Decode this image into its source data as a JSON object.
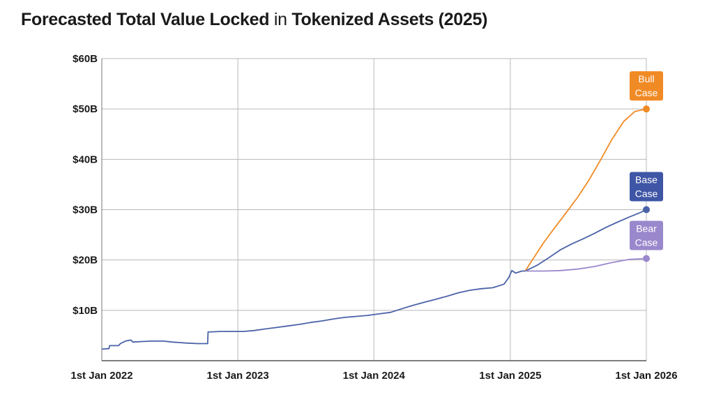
{
  "title": {
    "part1": "Forecasted Total Value Locked",
    "part2": "in",
    "part3": "Tokenized Assets (2025)"
  },
  "chart_data": {
    "type": "line",
    "title": "Forecasted Total Value Locked in Tokenized Assets (2025)",
    "xlabel": "",
    "ylabel": "",
    "x_range": [
      "2022-01-01",
      "2026-01-01"
    ],
    "ylim": [
      0,
      60
    ],
    "grid": true,
    "x_ticks": [
      {
        "date": "2022-01-01",
        "label": "1st Jan 2022"
      },
      {
        "date": "2023-01-01",
        "label": "1st Jan 2023"
      },
      {
        "date": "2024-01-01",
        "label": "1st Jan 2024"
      },
      {
        "date": "2025-01-01",
        "label": "1st Jan 2025"
      },
      {
        "date": "2026-01-01",
        "label": "1st Jan 2026"
      }
    ],
    "y_ticks": [
      {
        "value": 10,
        "label": "$10B"
      },
      {
        "value": 20,
        "label": "$20B"
      },
      {
        "value": 30,
        "label": "$30B"
      },
      {
        "value": 40,
        "label": "$40B"
      },
      {
        "value": 50,
        "label": "$50B"
      },
      {
        "value": 60,
        "label": "$60B"
      }
    ],
    "series": [
      {
        "color": "#4a62a8",
        "points": [
          [
            "2022-01-01",
            2.3
          ],
          [
            "2022-01-20",
            2.4
          ],
          [
            "2022-01-22",
            3.0
          ],
          [
            "2022-02-15",
            3.0
          ],
          [
            "2022-02-20",
            3.4
          ],
          [
            "2022-03-05",
            3.9
          ],
          [
            "2022-03-20",
            4.1
          ],
          [
            "2022-03-25",
            3.7
          ],
          [
            "2022-04-15",
            3.8
          ],
          [
            "2022-05-15",
            3.9
          ],
          [
            "2022-06-15",
            3.9
          ],
          [
            "2022-07-10",
            3.7
          ],
          [
            "2022-08-15",
            3.5
          ],
          [
            "2022-09-15",
            3.4
          ],
          [
            "2022-10-12",
            3.4
          ],
          [
            "2022-10-13",
            5.7
          ],
          [
            "2022-11-15",
            5.8
          ],
          [
            "2022-12-15",
            5.8
          ],
          [
            "2023-01-15",
            5.8
          ],
          [
            "2023-02-15",
            6.0
          ],
          [
            "2023-03-15",
            6.3
          ],
          [
            "2023-04-15",
            6.6
          ],
          [
            "2023-05-15",
            6.9
          ],
          [
            "2023-06-15",
            7.2
          ],
          [
            "2023-07-15",
            7.6
          ],
          [
            "2023-08-15",
            7.9
          ],
          [
            "2023-09-15",
            8.3
          ],
          [
            "2023-10-15",
            8.6
          ],
          [
            "2023-11-15",
            8.8
          ],
          [
            "2023-12-15",
            9.0
          ],
          [
            "2024-01-15",
            9.3
          ],
          [
            "2024-02-15",
            9.6
          ],
          [
            "2024-03-15",
            10.3
          ],
          [
            "2024-04-15",
            11.0
          ],
          [
            "2024-05-15",
            11.6
          ],
          [
            "2024-06-15",
            12.2
          ],
          [
            "2024-07-15",
            12.8
          ],
          [
            "2024-08-15",
            13.5
          ],
          [
            "2024-09-15",
            14.0
          ],
          [
            "2024-10-15",
            14.3
          ],
          [
            "2024-11-15",
            14.5
          ],
          [
            "2024-12-15",
            15.2
          ],
          [
            "2024-12-28",
            16.5
          ],
          [
            "2025-01-05",
            17.9
          ],
          [
            "2025-01-15",
            17.4
          ],
          [
            "2025-02-01",
            17.8
          ],
          [
            "2025-02-10",
            17.8
          ]
        ]
      },
      {
        "name": "Bull Case",
        "color": "#f08a24",
        "points": [
          [
            "2025-02-10",
            17.8
          ],
          [
            "2025-03-01",
            20.0
          ],
          [
            "2025-04-01",
            23.5
          ],
          [
            "2025-05-01",
            26.5
          ],
          [
            "2025-06-01",
            29.5
          ],
          [
            "2025-07-01",
            32.5
          ],
          [
            "2025-08-01",
            36.0
          ],
          [
            "2025-09-01",
            40.0
          ],
          [
            "2025-10-01",
            44.0
          ],
          [
            "2025-11-01",
            47.5
          ],
          [
            "2025-12-01",
            49.5
          ],
          [
            "2026-01-01",
            50.0
          ]
        ]
      },
      {
        "name": "Base Case",
        "color": "#4a62a8",
        "points": [
          [
            "2025-02-10",
            17.8
          ],
          [
            "2025-03-15",
            19.0
          ],
          [
            "2025-04-15",
            20.5
          ],
          [
            "2025-05-15",
            22.0
          ],
          [
            "2025-06-15",
            23.2
          ],
          [
            "2025-07-15",
            24.2
          ],
          [
            "2025-08-15",
            25.3
          ],
          [
            "2025-09-15",
            26.5
          ],
          [
            "2025-10-15",
            27.5
          ],
          [
            "2025-11-15",
            28.5
          ],
          [
            "2025-12-15",
            29.4
          ],
          [
            "2026-01-01",
            30.0
          ]
        ]
      },
      {
        "name": "Bear Case",
        "color": "#9a88cc",
        "points": [
          [
            "2025-02-10",
            17.8
          ],
          [
            "2025-04-01",
            17.8
          ],
          [
            "2025-05-15",
            17.9
          ],
          [
            "2025-07-01",
            18.2
          ],
          [
            "2025-08-15",
            18.7
          ],
          [
            "2025-10-01",
            19.5
          ],
          [
            "2025-11-15",
            20.1
          ],
          [
            "2026-01-01",
            20.3
          ]
        ]
      }
    ],
    "annotations": [
      {
        "series": "Bull Case",
        "lines": [
          "Bull",
          "Case"
        ],
        "color": "#f08a24"
      },
      {
        "series": "Base Case",
        "lines": [
          "Base",
          "Case"
        ],
        "color": "#3f56a6"
      },
      {
        "series": "Bear Case",
        "lines": [
          "Bear",
          "Case"
        ],
        "color": "#9a88cc"
      }
    ]
  }
}
